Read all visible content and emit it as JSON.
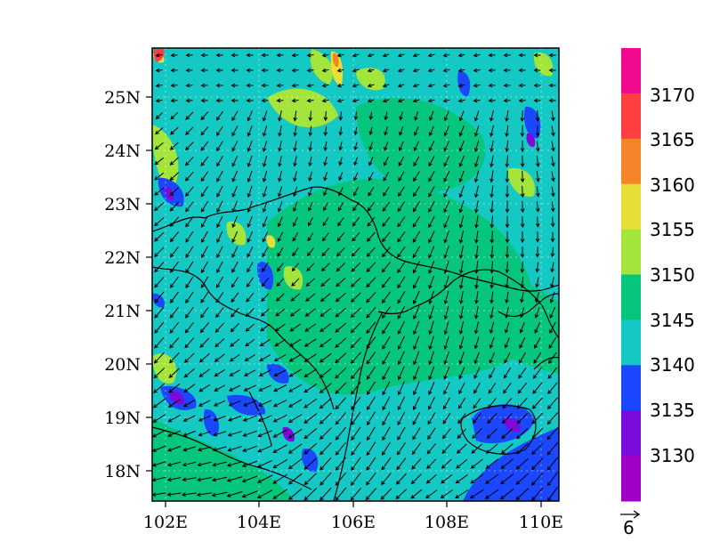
{
  "map": {
    "lon_labels": [
      "102E",
      "104E",
      "106E",
      "108E",
      "110E"
    ],
    "lat_labels": [
      "25N",
      "24N",
      "23N",
      "22N",
      "21N",
      "20N",
      "19N",
      "18N"
    ],
    "lon_range": [
      101.7,
      110.8
    ],
    "lat_range": [
      17.4,
      25.9
    ],
    "field_palette": [
      "#32c8c2",
      "#00c78a",
      "#a0e238",
      "#e6e23a",
      "#1b45ff"
    ]
  },
  "colorbar": {
    "labels": [
      "3170",
      "3165",
      "3160",
      "3155",
      "3150",
      "3145",
      "3140",
      "3135",
      "3130"
    ],
    "colors": [
      "#f10a8e",
      "#fe3f3f",
      "#f48429",
      "#e7df36",
      "#a3e53a",
      "#06c67d",
      "#14c8c4",
      "#1b47ff",
      "#7b0bdc",
      "#a100c8"
    ]
  },
  "vector_ref": {
    "label": "6"
  }
}
